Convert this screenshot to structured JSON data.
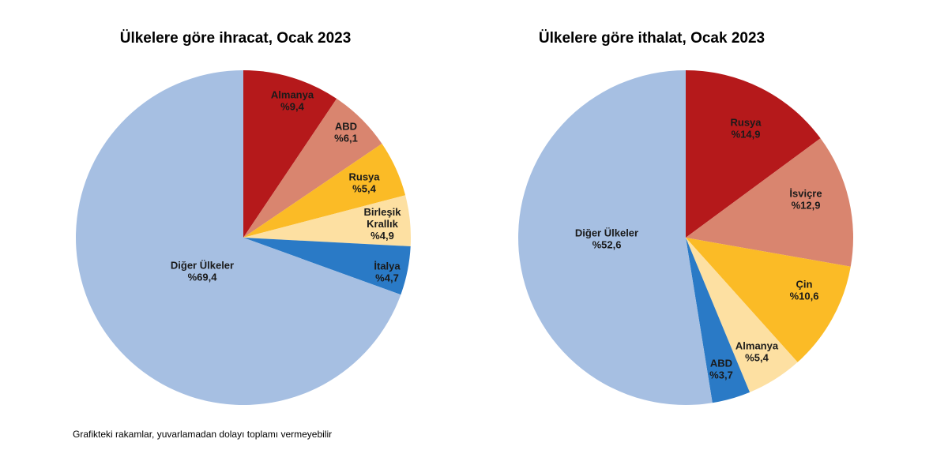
{
  "chart_data": [
    {
      "type": "pie",
      "title": "Ülkelere göre ihracat, Ocak 2023",
      "slices": [
        {
          "label": "Almanya",
          "value": 9.4,
          "value_label": "%9,4",
          "color": "#b5191b"
        },
        {
          "label": "ABD",
          "value": 6.1,
          "value_label": "%6,1",
          "color": "#d9856f"
        },
        {
          "label": "Rusya",
          "value": 5.4,
          "value_label": "%5,4",
          "color": "#fbbb26"
        },
        {
          "label": "Birleşik Krallık",
          "label_lines": [
            "Birleşik",
            "Krallık"
          ],
          "value": 4.9,
          "value_label": "%4,9",
          "color": "#fde0a2"
        },
        {
          "label": "İtalya",
          "value": 4.7,
          "value_label": "%4,7",
          "color": "#2a7ac6"
        },
        {
          "label": "Diğer Ülkeler",
          "value": 69.4,
          "value_label": "%69,4",
          "color": "#a6bfe2"
        }
      ]
    },
    {
      "type": "pie",
      "title": "Ülkelere göre ithalat, Ocak 2023",
      "slices": [
        {
          "label": "Rusya",
          "value": 14.9,
          "value_label": "%14,9",
          "color": "#b5191b"
        },
        {
          "label": "İsviçre",
          "value": 12.9,
          "value_label": "%12,9",
          "color": "#d9856f"
        },
        {
          "label": "Çin",
          "value": 10.6,
          "value_label": "%10,6",
          "color": "#fbbb26"
        },
        {
          "label": "Almanya",
          "value": 5.4,
          "value_label": "%5,4",
          "color": "#fde0a2"
        },
        {
          "label": "ABD",
          "value": 3.7,
          "value_label": "%3,7",
          "color": "#2a7ac6"
        },
        {
          "label": "Diğer Ülkeler",
          "value": 52.6,
          "value_label": "%52,6",
          "color": "#a6bfe2"
        }
      ]
    }
  ],
  "footnote": "Grafikteki rakamlar, yuvarlamadan dolayı toplamı vermeyebilir"
}
